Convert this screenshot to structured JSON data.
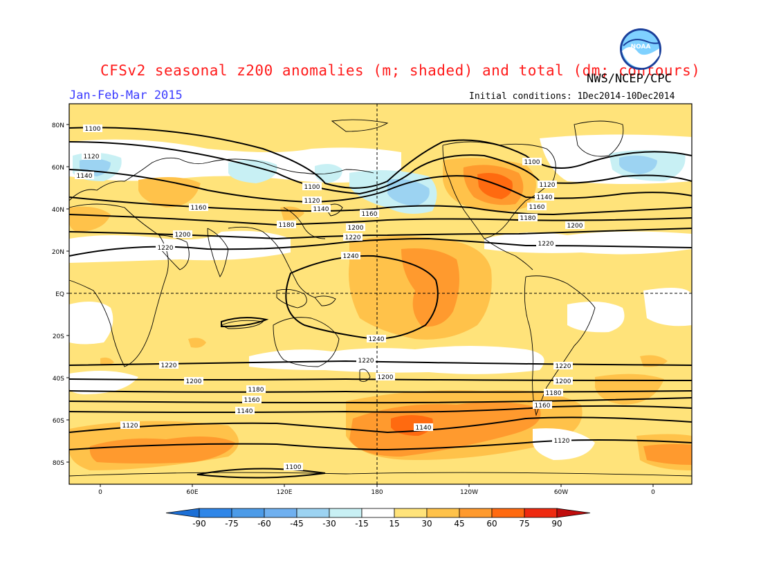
{
  "header": {
    "title": "CFSv2 seasonal z200 anomalies (m; shaded) and total (dm; contours)",
    "season": "Jan-Feb-Mar 2015",
    "agency": "NWS/NCEP/CPC",
    "initial_conditions": "Initial conditions: 1Dec2014-10Dec2014",
    "logo_text": "NOAA"
  },
  "axes": {
    "lat_labels": [
      "80N",
      "60N",
      "40N",
      "20N",
      "EQ",
      "20S",
      "40S",
      "60S",
      "80S"
    ],
    "lon_labels": [
      "0",
      "60E",
      "120E",
      "180",
      "120W",
      "60W",
      "0"
    ]
  },
  "contour_labels": {
    "c1100": "1100",
    "c1120": "1120",
    "c1140": "1140",
    "c1160": "1160",
    "c1180": "1180",
    "c1200": "1200",
    "c1220": "1220",
    "c1240": "1240"
  },
  "colorbar": {
    "labels": [
      "-90",
      "-75",
      "-60",
      "-45",
      "-30",
      "-15",
      "15",
      "30",
      "45",
      "60",
      "75",
      "90"
    ],
    "colors": [
      "#1c6fd6",
      "#2f86e8",
      "#4c9be8",
      "#6fb0f0",
      "#9cd3f2",
      "#c8f0f4",
      "#ffffff",
      "#ffe37a",
      "#ffc24a",
      "#ff9a2e",
      "#ff6a10",
      "#ee2a10",
      "#c00d0d"
    ]
  },
  "colors": {
    "title": "#ff1a1a",
    "season": "#3a3aff",
    "land_outline": "#000000",
    "background_anomaly": "#ffe37a"
  }
}
